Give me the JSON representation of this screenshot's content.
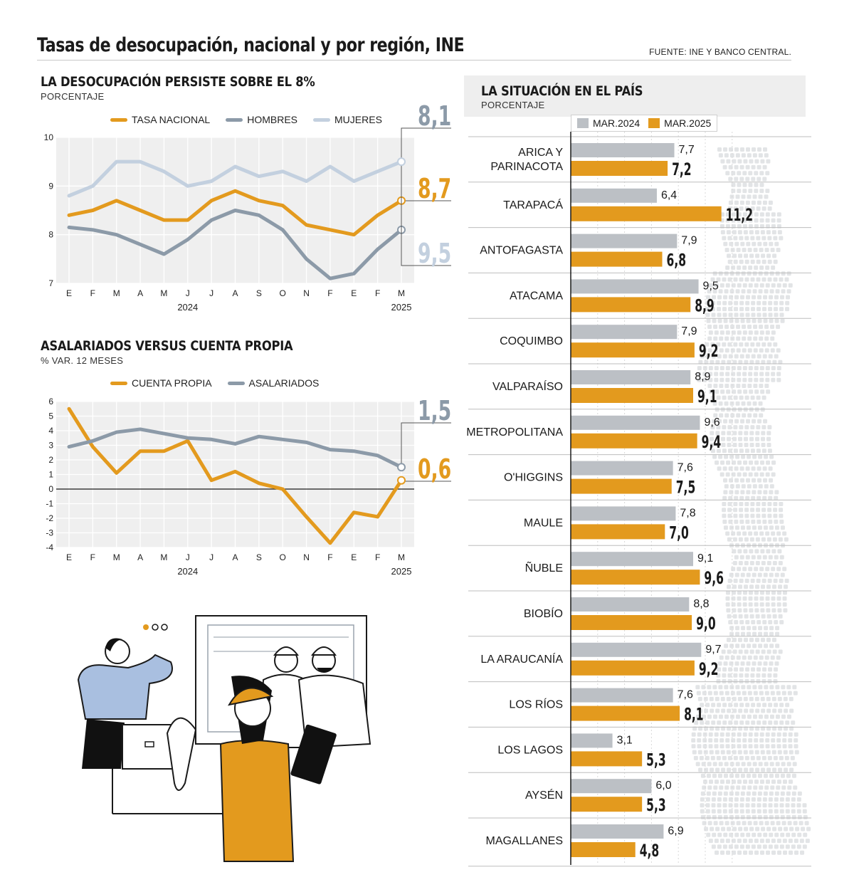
{
  "header": {
    "title": "Tasas de desocupación, nacional y por región, INE",
    "source": "FUENTE: INE Y BANCO CENTRAL."
  },
  "colors": {
    "orange": "#e39a1e",
    "gray_dark": "#8c9aa8",
    "gray_light": "#c3d0df",
    "bar_gray": "#bcc0c5"
  },
  "chart_data": [
    {
      "type": "line",
      "title": "LA DESOCUPACIÓN PERSISTE SOBRE EL 8%",
      "subtitle": "PORCENTAJE",
      "categories": [
        "E",
        "F",
        "M",
        "A",
        "M",
        "J",
        "J",
        "A",
        "S",
        "O",
        "N",
        "F",
        "E",
        "F",
        "M"
      ],
      "year_labels": [
        "2024",
        "2025"
      ],
      "ylim": [
        7,
        10
      ],
      "yticks": [
        7,
        8,
        9,
        10
      ],
      "grid": true,
      "legend": "top",
      "series": [
        {
          "name": "TASA NACIONAL",
          "color": "#e39a1e",
          "end_label": "8,7",
          "values": [
            8.4,
            8.5,
            8.7,
            8.5,
            8.3,
            8.3,
            8.7,
            8.9,
            8.7,
            8.6,
            8.2,
            8.1,
            8.0,
            8.4,
            8.7
          ]
        },
        {
          "name": "HOMBRES",
          "color": "#8c9aa8",
          "end_label": "8,1",
          "values": [
            8.15,
            8.1,
            8.0,
            7.8,
            7.6,
            7.9,
            8.3,
            8.5,
            8.4,
            8.1,
            7.5,
            7.1,
            7.2,
            7.7,
            8.1
          ]
        },
        {
          "name": "MUJERES",
          "color": "#c3d0df",
          "end_label": "9,5",
          "values": [
            8.8,
            9.0,
            9.5,
            9.5,
            9.3,
            9.0,
            9.1,
            9.4,
            9.2,
            9.3,
            9.1,
            9.4,
            9.1,
            9.3,
            9.5
          ]
        }
      ]
    },
    {
      "type": "line",
      "title": "ASALARIADOS VERSUS CUENTA PROPIA",
      "subtitle": "% VAR. 12 MESES",
      "categories": [
        "E",
        "F",
        "M",
        "A",
        "M",
        "J",
        "J",
        "A",
        "S",
        "O",
        "N",
        "F",
        "E",
        "F",
        "M"
      ],
      "year_labels": [
        "2024",
        "2025"
      ],
      "ylim": [
        -4,
        6
      ],
      "yticks": [
        -4,
        -3,
        -2,
        -1,
        0,
        1,
        2,
        3,
        4,
        5,
        6
      ],
      "grid": true,
      "legend": "top",
      "series": [
        {
          "name": "CUENTA PROPIA",
          "color": "#e39a1e",
          "end_label": "0,6",
          "values": [
            5.5,
            2.9,
            1.1,
            2.6,
            2.6,
            3.3,
            0.6,
            1.2,
            0.4,
            0.0,
            -1.9,
            -3.7,
            -1.6,
            -1.9,
            0.6
          ]
        },
        {
          "name": "ASALARIADOS",
          "color": "#8c9aa8",
          "end_label": "1,5",
          "values": [
            2.9,
            3.3,
            3.9,
            4.1,
            3.8,
            3.5,
            3.4,
            3.1,
            3.6,
            3.4,
            3.2,
            2.7,
            2.6,
            2.3,
            1.5
          ]
        }
      ]
    },
    {
      "type": "bar",
      "title": "LA SITUACIÓN EN EL PAÍS",
      "subtitle": "PORCENTAJE",
      "orientation": "horizontal",
      "legend": "top",
      "categories": [
        "ARICA Y PARINACOTA",
        "TARAPACÁ",
        "ANTOFAGASTA",
        "ATACAMA",
        "COQUIMBO",
        "VALPARAÍSO",
        "METROPOLITANA",
        "O'HIGGINS",
        "MAULE",
        "ÑUBLE",
        "BIOBÍO",
        "LA ARAUCANÍA",
        "LOS RÍOS",
        "LOS LAGOS",
        "AYSÉN",
        "MAGALLANES"
      ],
      "series": [
        {
          "name": "MAR.2024",
          "color": "#bcc0c5",
          "values": [
            7.7,
            6.4,
            7.9,
            9.5,
            7.9,
            8.9,
            9.6,
            7.6,
            7.8,
            9.1,
            8.8,
            9.7,
            7.6,
            3.1,
            6.0,
            6.9
          ],
          "labels": [
            "7,7",
            "6,4",
            "7,9",
            "9,5",
            "7,9",
            "8,9",
            "9,6",
            "7,6",
            "7,8",
            "9,1",
            "8,8",
            "9,7",
            "7,6",
            "3,1",
            "6,0",
            "6,9"
          ]
        },
        {
          "name": "MAR.2025",
          "color": "#e39a1e",
          "values": [
            7.2,
            11.2,
            6.8,
            8.9,
            9.2,
            9.1,
            9.4,
            7.5,
            7.0,
            9.6,
            9.0,
            9.2,
            8.1,
            5.3,
            5.3,
            4.8
          ],
          "labels": [
            "7,2",
            "11,2",
            "6,8",
            "8,9",
            "9,2",
            "9,1",
            "9,4",
            "7,5",
            "7,0",
            "9,6",
            "9,0",
            "9,2",
            "8,1",
            "5,3",
            "5,3",
            "4,8"
          ]
        }
      ]
    }
  ]
}
